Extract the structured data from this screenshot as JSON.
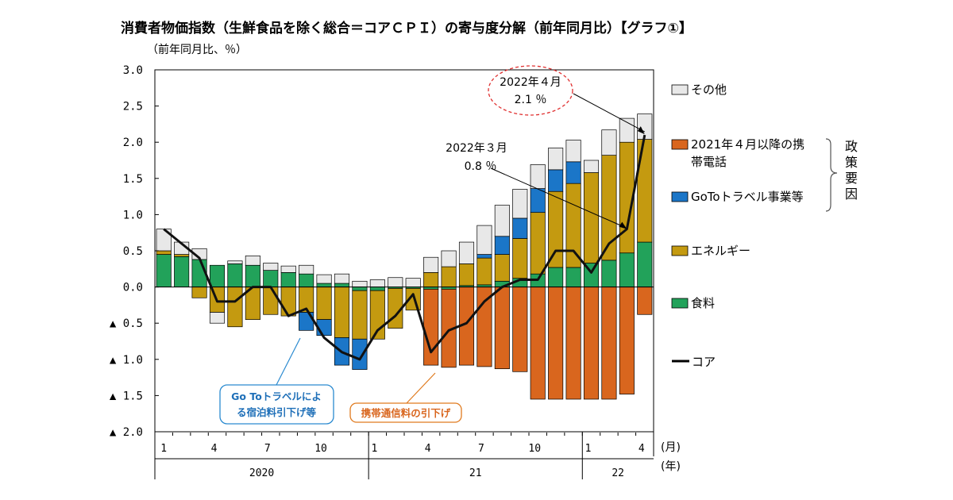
{
  "chart_data": {
    "type": "bar",
    "stacked": true,
    "title": "消費者物価指数（生鮮食品を除く総合＝コアＣＰＩ）の寄与度分解（前年同月比）【グラフ①】",
    "ylabel": "（前年同月比、％）",
    "ylim": [
      -2.0,
      3.0
    ],
    "yticks": [
      {
        "value": 3.0,
        "label": "3.0"
      },
      {
        "value": 2.5,
        "label": "2.5"
      },
      {
        "value": 2.0,
        "label": "2.0"
      },
      {
        "value": 1.5,
        "label": "1.5"
      },
      {
        "value": 1.0,
        "label": "1.0"
      },
      {
        "value": 0.5,
        "label": "0.5"
      },
      {
        "value": 0.0,
        "label": "0.0"
      },
      {
        "value": -0.5,
        "label": "▲ 0.5"
      },
      {
        "value": -1.0,
        "label": "▲ 1.0"
      },
      {
        "value": -1.5,
        "label": "▲ 1.5"
      },
      {
        "value": -2.0,
        "label": "▲ 2.0"
      }
    ],
    "month_ticks": [
      {
        "index": 0,
        "label": "1"
      },
      {
        "index": 3,
        "label": "4"
      },
      {
        "index": 6,
        "label": "7"
      },
      {
        "index": 9,
        "label": "10"
      },
      {
        "index": 12,
        "label": "1"
      },
      {
        "index": 15,
        "label": "4"
      },
      {
        "index": 18,
        "label": "7"
      },
      {
        "index": 21,
        "label": "10"
      },
      {
        "index": 24,
        "label": "1"
      },
      {
        "index": 27,
        "label": "4"
      }
    ],
    "years": [
      {
        "label": "2020",
        "start": 0,
        "end": 11
      },
      {
        "label": "21",
        "start": 12,
        "end": 23
      },
      {
        "label": "22",
        "start": 24,
        "end": 27
      }
    ],
    "xunit_month": "(月)",
    "xunit_year": "(年)",
    "months": [
      "2020-01",
      "2020-02",
      "2020-03",
      "2020-04",
      "2020-05",
      "2020-06",
      "2020-07",
      "2020-08",
      "2020-09",
      "2020-10",
      "2020-11",
      "2020-12",
      "2021-01",
      "2021-02",
      "2021-03",
      "2021-04",
      "2021-05",
      "2021-06",
      "2021-07",
      "2021-08",
      "2021-09",
      "2021-10",
      "2021-11",
      "2021-12",
      "2022-01",
      "2022-02",
      "2022-03",
      "2022-04"
    ],
    "series": [
      {
        "name": "食料",
        "legend": "食料",
        "color": "#22a25a",
        "values": [
          0.45,
          0.42,
          0.38,
          0.3,
          0.32,
          0.3,
          0.23,
          0.2,
          0.18,
          0.05,
          0.05,
          -0.05,
          -0.05,
          -0.02,
          -0.02,
          -0.03,
          -0.03,
          0.02,
          0.03,
          0.08,
          0.12,
          0.18,
          0.27,
          0.27,
          0.33,
          0.37,
          0.47,
          0.62
        ]
      },
      {
        "name": "エネルギー",
        "legend": "エネルギー",
        "color": "#c49a10",
        "values": [
          0.05,
          0.03,
          -0.15,
          -0.35,
          -0.55,
          -0.45,
          -0.38,
          -0.4,
          -0.35,
          -0.45,
          -0.7,
          -0.67,
          -0.67,
          -0.55,
          -0.3,
          0.2,
          0.28,
          0.3,
          0.37,
          0.37,
          0.55,
          0.85,
          1.05,
          1.16,
          1.25,
          1.45,
          1.53,
          1.42
        ]
      },
      {
        "name": "GoToトラベル事業等",
        "legend": "GoToトラベル事業等",
        "color": "#1b76c8",
        "values": [
          0,
          0,
          0,
          0,
          0,
          0,
          0,
          0,
          -0.25,
          -0.22,
          -0.38,
          -0.42,
          0,
          0,
          0,
          0,
          0,
          0,
          0.05,
          0.25,
          0.28,
          0.33,
          0.3,
          0.3,
          0,
          0,
          0,
          0
        ]
      },
      {
        "name": "2021年４月以降の携帯電話",
        "legend": "2021年４月以降の携\n帯電話",
        "color": "#d9661e",
        "values": [
          0,
          0,
          0,
          0,
          0,
          0,
          0,
          0,
          0,
          0,
          0,
          0,
          0,
          0,
          0,
          -1.05,
          -1.08,
          -1.08,
          -1.1,
          -1.13,
          -1.17,
          -1.55,
          -1.55,
          -1.55,
          -1.55,
          -1.55,
          -1.48,
          -0.38
        ]
      },
      {
        "name": "その他",
        "legend": "その他",
        "color": "#e8e8e8",
        "values": [
          0.3,
          0.17,
          0.15,
          -0.15,
          0.04,
          0.13,
          0.1,
          0.09,
          0.12,
          0.12,
          0.13,
          0.08,
          0.1,
          0.13,
          0.12,
          0.21,
          0.22,
          0.3,
          0.4,
          0.43,
          0.4,
          0.33,
          0.3,
          0.3,
          0.17,
          0.35,
          0.33,
          0.35
        ]
      }
    ],
    "core_line": {
      "name": "コア",
      "legend": "コア",
      "color": "#111111",
      "values": [
        0.8,
        0.6,
        0.4,
        -0.2,
        -0.2,
        0.0,
        0.0,
        -0.4,
        -0.3,
        -0.7,
        -0.9,
        -1.0,
        -0.6,
        -0.4,
        -0.1,
        -0.9,
        -0.6,
        -0.5,
        -0.2,
        0.0,
        0.1,
        0.1,
        0.5,
        0.5,
        0.2,
        0.6,
        0.8,
        2.1
      ]
    },
    "policy_label": "政策要因",
    "annotations": {
      "apr2022": {
        "line1": "2022年４月",
        "line2": "2.1 ％"
      },
      "mar2022": {
        "line1": "2022年３月",
        "line2": "0.8 ％"
      },
      "goto": {
        "line1": "Go Toトラベルによ",
        "line2": "る宿泊料引下げ等"
      },
      "mobile": {
        "line1": "携帯通信料の引下げ"
      }
    }
  }
}
